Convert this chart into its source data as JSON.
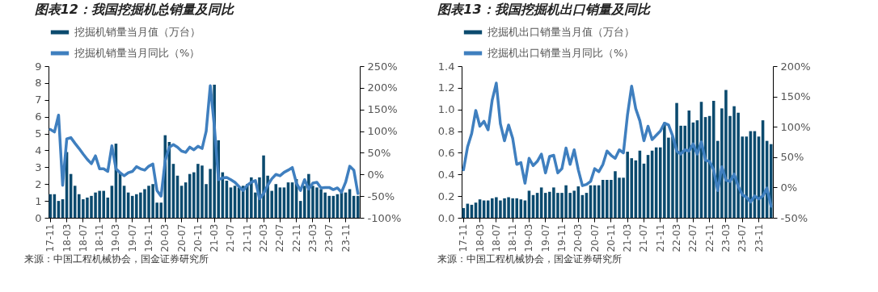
{
  "chart_data": [
    {
      "type": "bar",
      "title": "图表12：我国挖掘机总销量及同比",
      "legend": "top",
      "annotations": [
        "来源：中国工程机械协会，国金证券研究所"
      ],
      "categories": [
        "17-11",
        null,
        null,
        null,
        "18-03",
        null,
        null,
        null,
        "18-07",
        null,
        null,
        null,
        "18-11",
        null,
        null,
        null,
        "19-03",
        null,
        null,
        null,
        "19-07",
        null,
        null,
        null,
        "19-11",
        null,
        null,
        null,
        "20-03",
        null,
        null,
        null,
        "20-07",
        null,
        null,
        null,
        "20-11",
        null,
        null,
        null,
        "21-03",
        null,
        null,
        null,
        "21-07",
        null,
        null,
        null,
        "21-11",
        null,
        null,
        null,
        "22-03",
        null,
        null,
        null,
        "22-07",
        null,
        null,
        null,
        "22-11",
        null,
        null,
        null,
        "23-03",
        null,
        null,
        null,
        "23-07",
        null,
        null,
        null,
        "23-11",
        null,
        null,
        null
      ],
      "ylim": [
        0,
        9
      ],
      "yticks": [
        0,
        1,
        2,
        3,
        4,
        5,
        6,
        7,
        8,
        9
      ],
      "y2lim": [
        -100,
        250
      ],
      "y2ticks": [
        {
          "value": -100,
          "label": "-100%"
        },
        {
          "value": -50,
          "label": "-50%"
        },
        {
          "value": 0,
          "label": "0%"
        },
        {
          "value": 50,
          "label": "50%"
        },
        {
          "value": 100,
          "label": "100%"
        },
        {
          "value": 150,
          "label": "150%"
        },
        {
          "value": 200,
          "label": "200%"
        },
        {
          "value": 250,
          "label": "250%"
        }
      ],
      "series": [
        {
          "name": "挖掘机销量当月值（万台）",
          "color": "#0b4a6e",
          "values": [
            1.4,
            1.4,
            1.0,
            1.1,
            3.9,
            2.6,
            1.9,
            1.4,
            1.1,
            1.2,
            1.3,
            1.5,
            1.6,
            1.6,
            1.2,
            1.9,
            4.4,
            2.7,
            1.9,
            1.5,
            1.3,
            1.4,
            1.5,
            1.7,
            1.9,
            2.0,
            0.9,
            0.9,
            4.9,
            4.5,
            3.2,
            2.5,
            1.9,
            2.1,
            2.6,
            2.7,
            3.2,
            3.1,
            2.0,
            2.9,
            7.9,
            4.6,
            2.7,
            2.2,
            1.8,
            1.9,
            1.8,
            1.9,
            2.0,
            2.4,
            1.5,
            2.4,
            3.7,
            2.5,
            1.6,
            2.0,
            1.8,
            1.8,
            2.1,
            2.1,
            2.3,
            1.0,
            1.9,
            2.6,
            1.9,
            1.8,
            1.7,
            1.5,
            1.3,
            1.3,
            1.4,
            1.5,
            1.5,
            1.7,
            1.3,
            1.3
          ]
        },
        {
          "name": "挖掘机销量当月同比（%）",
          "type": "line",
          "axis": "y2",
          "color": "#3f7fbf",
          "values": [
            104,
            98,
            137,
            -25,
            82,
            85,
            72,
            60,
            47,
            35,
            25,
            43,
            13,
            13,
            7,
            66,
            13,
            4,
            -3,
            4,
            7,
            18,
            13,
            10,
            19,
            24,
            -37,
            -50,
            32,
            63,
            69,
            63,
            54,
            51,
            63,
            57,
            65,
            60,
            100,
            205,
            110,
            -12,
            -8,
            -7,
            -12,
            -18,
            -28,
            -37,
            -25,
            -18,
            -14,
            -56,
            -44,
            -25,
            -10,
            0,
            -3,
            5,
            10,
            16,
            -20,
            -37,
            -12,
            -34,
            -20,
            -18,
            -31,
            -30,
            -30,
            -35,
            -31,
            -41,
            -18,
            19,
            10,
            -44
          ]
        }
      ]
    },
    {
      "type": "bar",
      "title": "图表13：我国挖掘机出口销量及同比",
      "legend": "top",
      "annotations": [
        "来源：中国工程机械协会，国金证券研究所"
      ],
      "categories": [
        "17-11",
        null,
        null,
        null,
        "18-03",
        null,
        null,
        null,
        "18-07",
        null,
        null,
        null,
        "18-11",
        null,
        null,
        null,
        "19-03",
        null,
        null,
        null,
        "19-07",
        null,
        null,
        null,
        "19-11",
        null,
        null,
        null,
        "20-03",
        null,
        null,
        null,
        "20-07",
        null,
        null,
        null,
        "20-11",
        null,
        null,
        null,
        "21-03",
        null,
        null,
        null,
        "21-07",
        null,
        null,
        null,
        "21-11",
        null,
        null,
        null,
        "22-03",
        null,
        null,
        null,
        "22-07",
        null,
        null,
        null,
        "22-11",
        null,
        null,
        null,
        "23-03",
        null,
        null,
        null,
        "23-07",
        null,
        null,
        null,
        "23-11",
        null,
        null,
        null
      ],
      "ylim": [
        0,
        1.4
      ],
      "yticks": [
        {
          "value": 0,
          "label": "0.0"
        },
        {
          "value": 0.2,
          "label": "0.2"
        },
        {
          "value": 0.4,
          "label": "0.4"
        },
        {
          "value": 0.6,
          "label": "0.6"
        },
        {
          "value": 0.8,
          "label": "0.8"
        },
        {
          "value": 1,
          "label": "1.0"
        },
        {
          "value": 1.2,
          "label": "1.2"
        },
        {
          "value": 1.4,
          "label": "1.4"
        }
      ],
      "y2lim": [
        -50,
        200
      ],
      "y2ticks": [
        {
          "value": -50,
          "label": "-50%"
        },
        {
          "value": 0,
          "label": "0%"
        },
        {
          "value": 50,
          "label": "50%"
        },
        {
          "value": 100,
          "label": "100%"
        },
        {
          "value": 150,
          "label": "150%"
        },
        {
          "value": 200,
          "label": "200%"
        }
      ],
      "series": [
        {
          "name": "挖掘机出口销量当月值（万台）",
          "color": "#0b4a6e",
          "values": [
            0.09,
            0.13,
            0.12,
            0.14,
            0.17,
            0.16,
            0.16,
            0.18,
            0.19,
            0.16,
            0.18,
            0.19,
            0.18,
            0.18,
            0.17,
            0.16,
            0.25,
            0.21,
            0.23,
            0.28,
            0.23,
            0.24,
            0.28,
            0.23,
            0.23,
            0.3,
            0.23,
            0.25,
            0.29,
            0.21,
            0.23,
            0.3,
            0.3,
            0.3,
            0.35,
            0.35,
            0.35,
            0.43,
            0.37,
            0.37,
            0.61,
            0.55,
            0.53,
            0.62,
            0.5,
            0.58,
            0.62,
            0.65,
            0.65,
            0.88,
            0.74,
            0.75,
            1.06,
            0.85,
            0.85,
            0.99,
            0.88,
            0.9,
            1.07,
            0.93,
            0.94,
            1.08,
            0.71,
            1.01,
            1.18,
            0.94,
            1.03,
            0.97,
            0.75,
            0.75,
            0.8,
            0.8,
            0.75,
            0.9,
            0.71,
            0.68
          ]
        },
        {
          "name": "挖掘机出口销量当月同比（%）",
          "type": "line",
          "axis": "y2",
          "color": "#3f7fbf",
          "values": [
            29,
            67,
            89,
            127,
            101,
            109,
            95,
            144,
            172,
            105,
            77,
            103,
            81,
            38,
            41,
            7,
            48,
            36,
            43,
            55,
            24,
            51,
            53,
            24,
            31,
            65,
            38,
            62,
            29,
            3,
            5,
            10,
            31,
            26,
            38,
            60,
            53,
            48,
            62,
            57,
            120,
            167,
            130,
            110,
            77,
            101,
            79,
            86,
            93,
            106,
            103,
            85,
            60,
            55,
            62,
            60,
            72,
            55,
            75,
            45,
            43,
            29,
            -5,
            34,
            12,
            10,
            22,
            2,
            -12,
            -16,
            -24,
            -14,
            -19,
            -14,
            -1,
            -31
          ]
        }
      ]
    }
  ]
}
